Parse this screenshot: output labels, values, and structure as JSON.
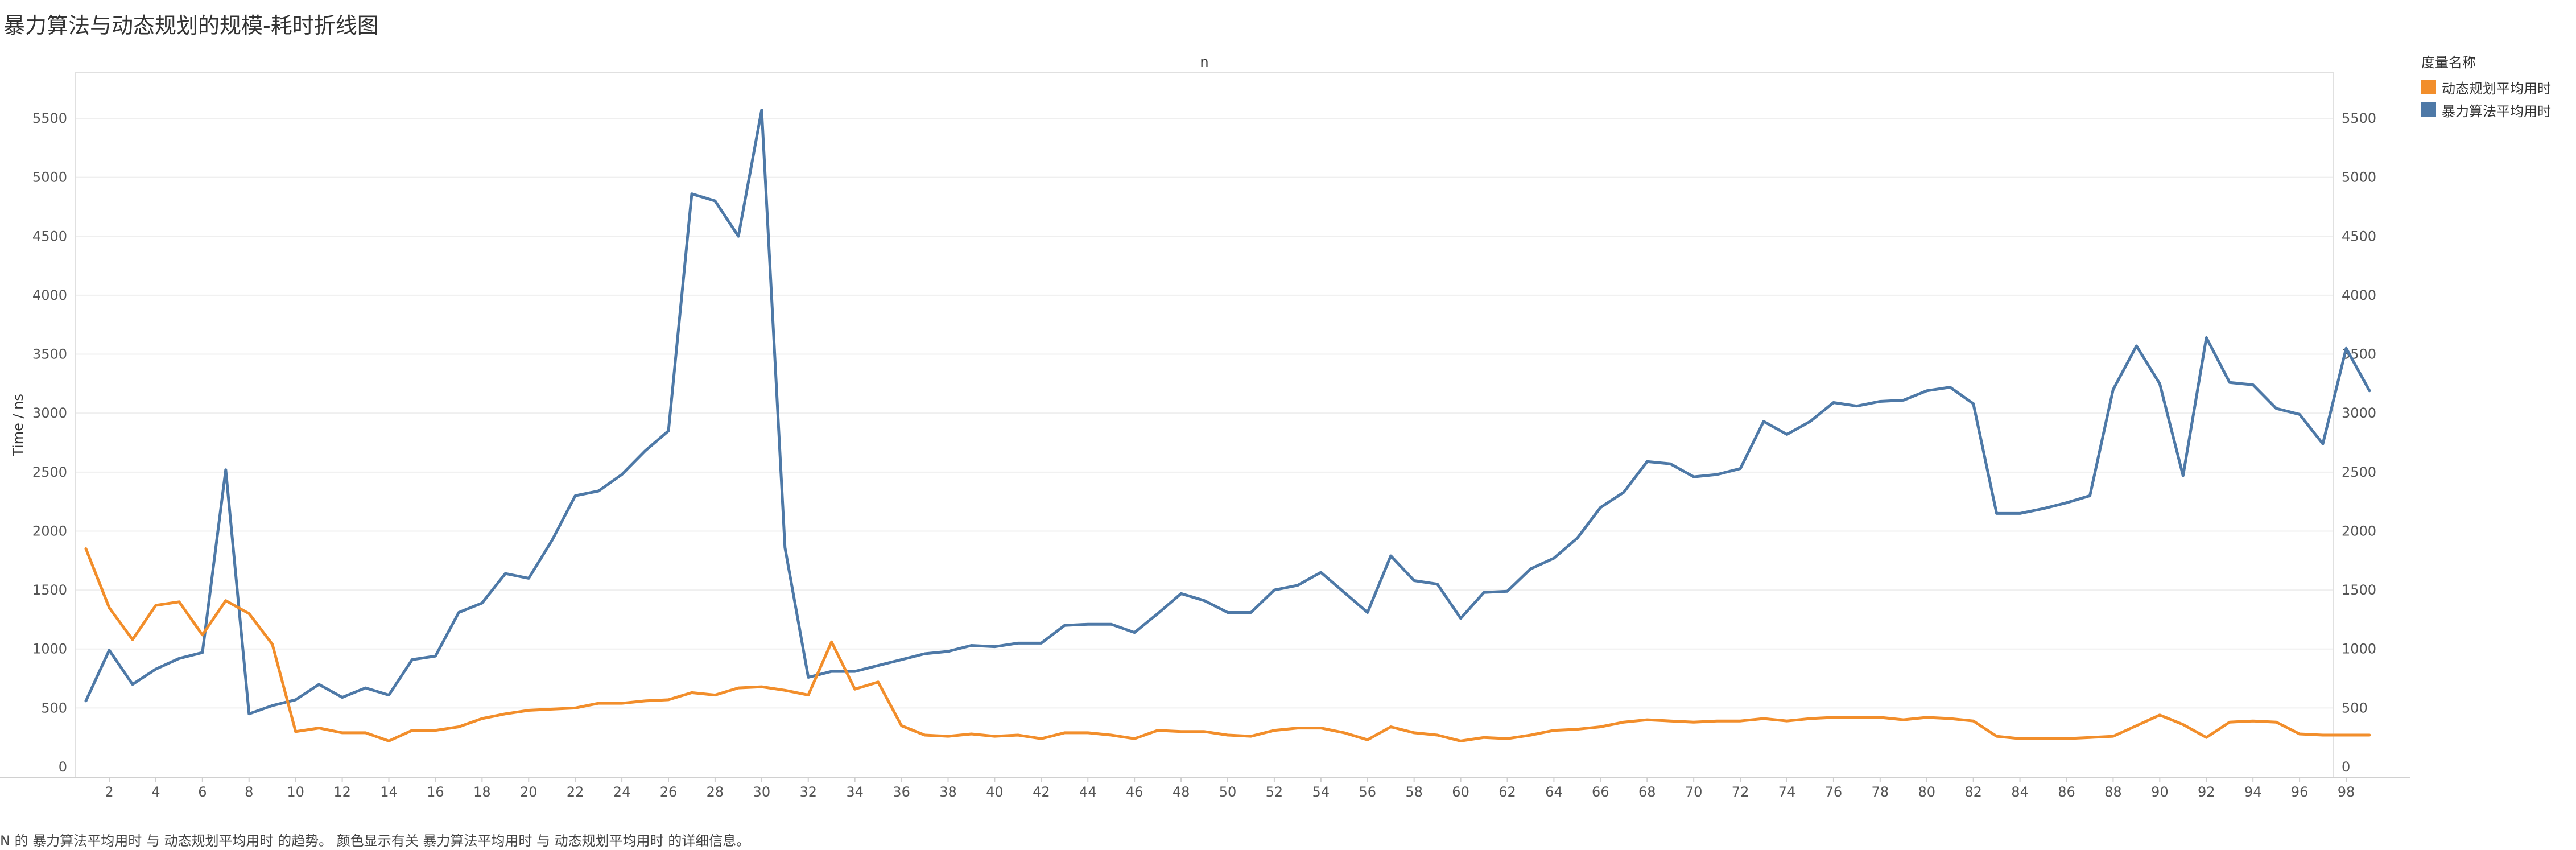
{
  "title": "暴力算法与动态规划的规模-耗时折线图",
  "caption": "N 的 暴力算法平均用时 与 动态规划平均用时 的趋势。 颜色显示有关 暴力算法平均用时 与 动态规划平均用时 的详细信息。",
  "legend": {
    "title": "度量名称",
    "items": [
      {
        "label": "动态规划平均用时",
        "color": "#F28E2B"
      },
      {
        "label": "暴力算法平均用时",
        "color": "#4E79A7"
      }
    ]
  },
  "chart_data": {
    "type": "line",
    "title": "",
    "xlabel": "n",
    "ylabel": "Time / ns",
    "ylim": [
      0,
      5800
    ],
    "xlim": [
      0,
      100
    ],
    "y_ticks": [
      0,
      500,
      1000,
      1500,
      2000,
      2500,
      3000,
      3500,
      4000,
      4500,
      5000,
      5500
    ],
    "x_ticks": [
      2,
      4,
      6,
      8,
      10,
      12,
      14,
      16,
      18,
      20,
      22,
      24,
      26,
      28,
      30,
      32,
      34,
      36,
      38,
      40,
      42,
      44,
      46,
      48,
      50,
      52,
      54,
      56,
      58,
      60,
      62,
      64,
      66,
      68,
      70,
      72,
      74,
      76,
      78,
      80,
      82,
      84,
      86,
      88,
      90,
      92,
      94,
      96,
      98
    ],
    "grid": "horizontal",
    "dual_axis": true,
    "legend_position": "top-right",
    "x": [
      1,
      2,
      3,
      4,
      5,
      6,
      7,
      8,
      9,
      10,
      11,
      12,
      13,
      14,
      15,
      16,
      17,
      18,
      19,
      20,
      21,
      22,
      23,
      24,
      25,
      26,
      27,
      28,
      29,
      30,
      31,
      32,
      33,
      34,
      35,
      36,
      37,
      38,
      39,
      40,
      41,
      42,
      43,
      44,
      45,
      46,
      47,
      48,
      49,
      50,
      51,
      52,
      53,
      54,
      55,
      56,
      57,
      58,
      59,
      60,
      61,
      62,
      63,
      64,
      65,
      66,
      67,
      68,
      69,
      70,
      71,
      72,
      73,
      74,
      75,
      76,
      77,
      78,
      79,
      80,
      81,
      82,
      83,
      84,
      85,
      86,
      87,
      88,
      89,
      90,
      91,
      92,
      93,
      94,
      95,
      96,
      97,
      98,
      99
    ],
    "series": [
      {
        "name": "暴力算法平均用时",
        "color": "#4E79A7",
        "values": [
          560,
          990,
          700,
          830,
          920,
          970,
          2520,
          450,
          520,
          570,
          700,
          590,
          670,
          610,
          910,
          940,
          1310,
          1390,
          1640,
          1600,
          1920,
          2300,
          2340,
          2480,
          2680,
          2850,
          4860,
          4800,
          4500,
          5570,
          1860,
          760,
          810,
          810,
          860,
          910,
          960,
          980,
          1030,
          1020,
          1050,
          1050,
          1200,
          1210,
          1210,
          1140,
          1300,
          1470,
          1410,
          1310,
          1310,
          1500,
          1540,
          1650,
          1480,
          1310,
          1790,
          1580,
          1550,
          1260,
          1480,
          1490,
          1680,
          1770,
          1940,
          2200,
          2330,
          2590,
          2570,
          2460,
          2480,
          2530,
          2930,
          2820,
          2930,
          3090,
          3060,
          3100,
          3110,
          3190,
          3220,
          3080,
          2150,
          2150,
          2190,
          2240,
          2300,
          3200,
          3570,
          3250,
          2470,
          3640,
          3260,
          3240,
          3040,
          2990,
          2740,
          3550,
          3190
        ]
      },
      {
        "name": "动态规划平均用时",
        "color": "#F28E2B",
        "values": [
          1850,
          1350,
          1080,
          1370,
          1400,
          1120,
          1410,
          1300,
          1040,
          300,
          330,
          290,
          290,
          220,
          310,
          310,
          340,
          410,
          450,
          480,
          490,
          500,
          540,
          540,
          560,
          570,
          630,
          610,
          670,
          680,
          650,
          610,
          1060,
          660,
          720,
          350,
          270,
          260,
          280,
          260,
          270,
          240,
          290,
          290,
          270,
          240,
          310,
          300,
          300,
          270,
          260,
          310,
          330,
          330,
          290,
          230,
          340,
          290,
          270,
          220,
          250,
          240,
          270,
          310,
          320,
          340,
          380,
          400,
          390,
          380,
          390,
          390,
          410,
          390,
          410,
          420,
          420,
          420,
          400,
          420,
          410,
          390,
          260,
          240,
          240,
          240,
          250,
          260,
          350,
          440,
          360,
          250,
          380,
          390,
          380,
          280,
          270,
          270,
          270
        ]
      }
    ]
  }
}
